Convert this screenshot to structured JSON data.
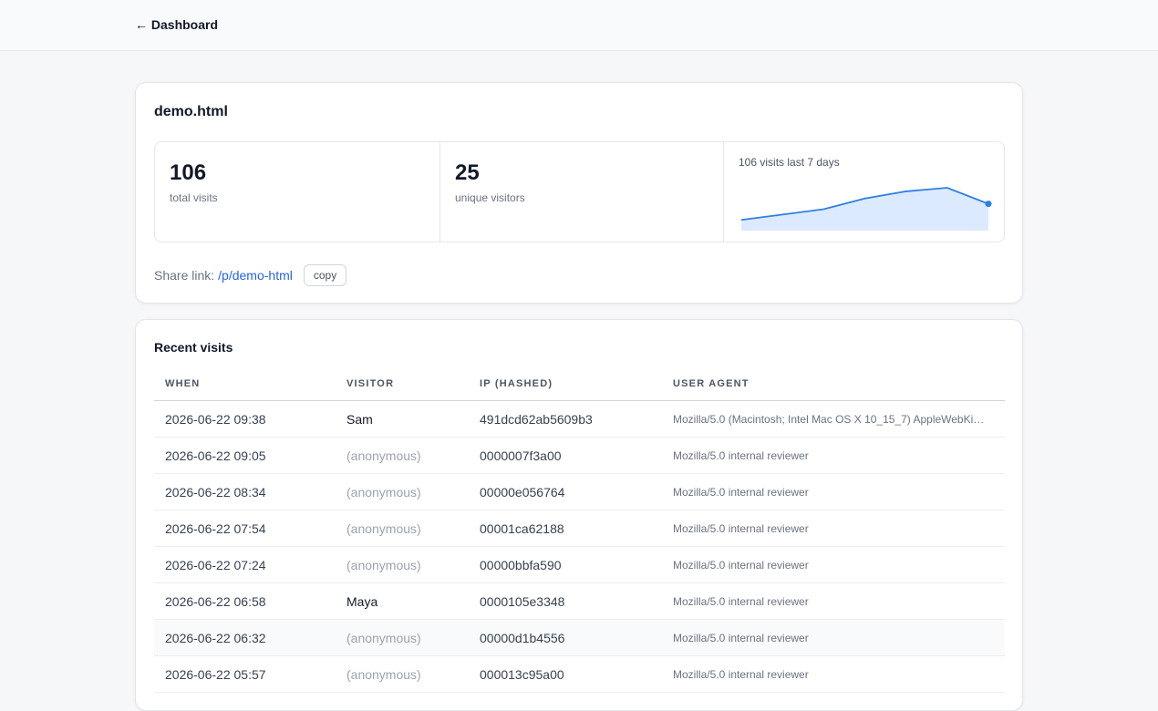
{
  "header": {
    "back": "← Dashboard"
  },
  "summary": {
    "title": "demo.html",
    "stats": [
      {
        "value": 106,
        "label": "total visits"
      },
      {
        "value": 25,
        "label": "unique visitors"
      }
    ],
    "chart_data": {
      "type": "area",
      "title": "106 visits last 7 days",
      "values": [
        6,
        9,
        12,
        18,
        22,
        24,
        15
      ],
      "color": "#2f7fe0",
      "fill": "#dbeafe"
    },
    "share": {
      "label": "Share link:",
      "link": "/p/demo-html",
      "button": "copy"
    }
  },
  "visits": {
    "title": "Recent visits",
    "columns": [
      "When",
      "Visitor",
      "IP (hashed)",
      "User agent"
    ],
    "rows": [
      [
        "2026-06-22 09:38",
        "Sam",
        "491dcd62ab5609b3",
        "Mozilla/5.0 (Macintosh; Intel Mac OS X 10_15_7) AppleWebKi…"
      ],
      [
        "2026-06-22 09:05",
        "(anonymous)",
        "0000007f3a00",
        "Mozilla/5.0 internal reviewer"
      ],
      [
        "2026-06-22 08:34",
        "(anonymous)",
        "00000e056764",
        "Mozilla/5.0 internal reviewer"
      ],
      [
        "2026-06-22 07:54",
        "(anonymous)",
        "00001ca62188",
        "Mozilla/5.0 internal reviewer"
      ],
      [
        "2026-06-22 07:24",
        "(anonymous)",
        "00000bbfa590",
        "Mozilla/5.0 internal reviewer"
      ],
      [
        "2026-06-22 06:58",
        "Maya",
        "0000105e3348",
        "Mozilla/5.0 internal reviewer"
      ],
      [
        "2026-06-22 06:32",
        "(anonymous)",
        "00000d1b4556",
        "Mozilla/5.0 internal reviewer"
      ],
      [
        "2026-06-22 05:57",
        "(anonymous)",
        "000013c95a00",
        "Mozilla/5.0 internal reviewer"
      ]
    ]
  }
}
